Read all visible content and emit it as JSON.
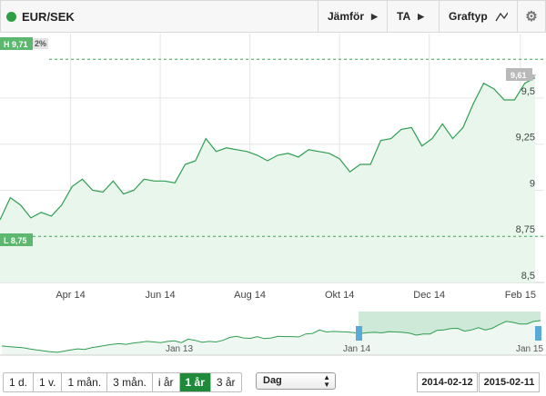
{
  "toolbar": {
    "title": "EUR/SEK",
    "compare_label": "Jämför",
    "ta_label": "TA",
    "graph_type_label": "Graftyp",
    "graph_type_glyph": "⁄\\⁄",
    "gear_icon": "⚙",
    "arrow": "▶"
  },
  "main_chart": {
    "high_label": "H 9,71",
    "high_partial": "2%",
    "low_label": "L 8,75",
    "current_label": "9,61",
    "y_ticks": [
      "9,5",
      "9,25",
      "9",
      "8,75",
      "8,5"
    ],
    "x_ticks": [
      "Apr 14",
      "Jun 14",
      "Aug 14",
      "Okt 14",
      "Dec 14",
      "Feb 15"
    ]
  },
  "mini_chart": {
    "x_ticks": [
      "Jan 13",
      "Jan 14",
      "Jan 15"
    ]
  },
  "controls": {
    "ranges": [
      "1 d.",
      "1 v.",
      "1 mån.",
      "3 mån.",
      "i år",
      "1 år",
      "3 år"
    ],
    "active_range": "1 år",
    "interval": "Dag",
    "date_from": "2014-02-12",
    "date_to": "2015-02-11"
  },
  "colors": {
    "line": "#2e9e50",
    "fill": "#e8f6ec",
    "label_bg": "#5cb86e",
    "accent": "#1f8a3a"
  },
  "chart_data": {
    "type": "line",
    "x_range": [
      "2014-02-12",
      "2015-02-11"
    ],
    "ylim": [
      8.5,
      9.8
    ],
    "high": 9.71,
    "low": 8.75,
    "last": 9.61,
    "series": [
      {
        "x": [
          "2014-02-12",
          "2014-02-19",
          "2014-02-26",
          "2014-03-05",
          "2014-03-12",
          "2014-03-19",
          "2014-03-26",
          "2014-04-02",
          "2014-04-09",
          "2014-04-16",
          "2014-04-23",
          "2014-04-30",
          "2014-05-07",
          "2014-05-14",
          "2014-05-21",
          "2014-05-28",
          "2014-06-04",
          "2014-06-11",
          "2014-06-18",
          "2014-06-25",
          "2014-07-02",
          "2014-07-09",
          "2014-07-16",
          "2014-07-23",
          "2014-07-30",
          "2014-08-06",
          "2014-08-13",
          "2014-08-20",
          "2014-08-27",
          "2014-09-03",
          "2014-09-10",
          "2014-09-17",
          "2014-09-24",
          "2014-10-01",
          "2014-10-08",
          "2014-10-15",
          "2014-10-22",
          "2014-10-29",
          "2014-11-05",
          "2014-11-12",
          "2014-11-19",
          "2014-11-26",
          "2014-12-03",
          "2014-12-10",
          "2014-12-17",
          "2014-12-24",
          "2014-12-31",
          "2015-01-07",
          "2015-01-14",
          "2015-01-21",
          "2015-01-28",
          "2015-02-04",
          "2015-02-11"
        ],
        "y": [
          8.84,
          8.96,
          8.92,
          8.85,
          8.88,
          8.86,
          8.92,
          9.02,
          9.06,
          9.0,
          8.99,
          9.05,
          8.98,
          9.0,
          9.06,
          9.05,
          9.05,
          9.04,
          9.14,
          9.16,
          9.28,
          9.21,
          9.23,
          9.22,
          9.21,
          9.19,
          9.16,
          9.19,
          9.2,
          9.18,
          9.22,
          9.21,
          9.2,
          9.17,
          9.1,
          9.14,
          9.14,
          9.27,
          9.28,
          9.33,
          9.34,
          9.24,
          9.28,
          9.36,
          9.28,
          9.34,
          9.47,
          9.58,
          9.55,
          9.49,
          9.49,
          9.58,
          9.61
        ]
      }
    ]
  }
}
